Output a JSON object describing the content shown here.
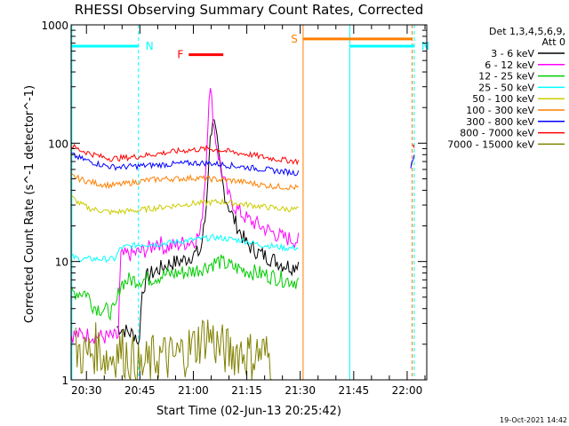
{
  "chart_data": {
    "type": "line",
    "title": "RHESSI Observing Summary Count Rates, Corrected",
    "ylabel": "Corrected Count Rate (s^-1 detector^-1)",
    "xlabel": "Start Time (02-Jun-13 20:25:42)",
    "yscale": "log",
    "ylim": [
      1,
      1000
    ],
    "y_ticks": [
      "1",
      "10",
      "100",
      "1000"
    ],
    "x_ticks": [
      "20:30",
      "20:45",
      "21:00",
      "21:15",
      "21:30",
      "21:45",
      "22:00"
    ],
    "x_tick_minutes": [
      30,
      45,
      60,
      75,
      90,
      105,
      120
    ],
    "xlim_minutes": [
      25.7,
      125.5
    ],
    "x_unit": "minutes after 20:00 UT",
    "legend_placement": "right",
    "legend_header": [
      "Det 1,3,4,5,6,9,",
      "Att 0"
    ],
    "footer": "19-Oct-2021 14:42",
    "grid": false,
    "series": [
      {
        "name": "3 - 6 keV",
        "color": "#000000",
        "x": [
          38.5,
          40,
          42,
          44,
          44.6,
          45.6,
          47,
          50,
          53,
          56,
          58,
          60,
          62,
          63.5,
          64.5,
          65.5,
          66.5,
          67.5,
          69,
          71,
          73,
          75,
          78,
          82,
          85,
          88,
          89.5
        ],
        "y": [
          2.8,
          2.7,
          2.5,
          2.4,
          1.8,
          5.5,
          7.5,
          8.5,
          9.5,
          10,
          10.5,
          11.5,
          12,
          25,
          90,
          170,
          110,
          60,
          35,
          24,
          18,
          14,
          12,
          10.5,
          9.5,
          9,
          10
        ]
      },
      {
        "name": "6 - 12 keV",
        "color": "#ff00ff",
        "x": [
          25.8,
          30,
          35,
          39,
          39.5,
          42,
          45,
          48,
          50,
          52,
          54,
          56,
          58,
          60,
          62,
          63.5,
          64.5,
          65.2,
          66,
          67,
          68.5,
          70,
          72,
          75,
          80,
          85,
          89.5
        ],
        "y": [
          2.4,
          2.4,
          2.3,
          2.3,
          11,
          11.5,
          12,
          13,
          15,
          13,
          13.5,
          14,
          14.5,
          15,
          17,
          60,
          310,
          220,
          120,
          80,
          50,
          35,
          28,
          23,
          19,
          16,
          15
        ]
      },
      {
        "name": "12 - 25 keV",
        "color": "#00cc00",
        "x": [
          25.8,
          30,
          32,
          34,
          36,
          38,
          39.5,
          42,
          45,
          48,
          50,
          53,
          56,
          59,
          61,
          63,
          65,
          67,
          69,
          71,
          74,
          78,
          82,
          86,
          89.5
        ],
        "y": [
          5.5,
          5.5,
          4.2,
          4,
          3.8,
          3.8,
          6.5,
          7,
          7,
          7.2,
          7.5,
          7.8,
          8,
          8.2,
          8.5,
          9,
          9.5,
          10,
          9.5,
          9,
          8.5,
          8,
          7.5,
          7,
          6.8
        ]
      },
      {
        "name": "25 - 50 keV",
        "color": "#00ffff",
        "x": [
          25.8,
          28,
          30,
          34,
          38,
          39.5,
          42,
          46,
          50,
          54,
          58,
          62,
          66,
          70,
          74,
          78,
          82,
          86,
          89.5
        ],
        "y": [
          11,
          10.5,
          10.5,
          10.5,
          10.5,
          13,
          13.5,
          14,
          14,
          14.5,
          15,
          15.5,
          16,
          15.5,
          15,
          14,
          13.5,
          13,
          13
        ]
      },
      {
        "name": "50 - 100 keV",
        "color": "#cccc00",
        "x": [
          25.8,
          28,
          31,
          34,
          37,
          40,
          44,
          48,
          52,
          56,
          60,
          64,
          68,
          72,
          76,
          80,
          84,
          89.5
        ],
        "y": [
          35,
          31,
          28,
          27,
          26,
          26.5,
          27,
          28,
          29,
          30,
          31,
          31.5,
          32,
          31,
          30,
          29,
          28,
          27.5
        ]
      },
      {
        "name": "100 - 300 keV",
        "color": "#ff7f00",
        "x": [
          25.8,
          28,
          31,
          34,
          37,
          40,
          44,
          48,
          52,
          56,
          60,
          64,
          68,
          72,
          76,
          80,
          84,
          89.5
        ],
        "y": [
          53,
          50,
          47,
          45,
          44,
          45,
          47,
          49,
          50,
          50,
          51,
          50,
          49,
          48,
          46,
          44,
          43,
          42
        ]
      },
      {
        "name": "300 - 800 keV",
        "color": "#0000ff",
        "x": [
          25.8,
          28,
          31,
          34,
          37,
          40,
          44,
          48,
          52,
          56,
          60,
          64,
          68,
          72,
          76,
          80,
          84,
          89.5,
          121,
          122
        ],
        "y": [
          80,
          75,
          70,
          66,
          63,
          63,
          64,
          65,
          66,
          67,
          68,
          68,
          66,
          64,
          62,
          60,
          58,
          56,
          65,
          80
        ]
      },
      {
        "name": "800 - 7000 keV",
        "color": "#ff0000",
        "x": [
          25.8,
          28,
          31,
          34,
          37,
          40,
          44,
          48,
          52,
          56,
          60,
          64,
          68,
          72,
          76,
          80,
          84,
          89.5,
          121.5,
          122
        ],
        "y": [
          95,
          88,
          82,
          77,
          74,
          75,
          77,
          80,
          83,
          86,
          88,
          90,
          87,
          83,
          80,
          76,
          73,
          70,
          100,
          90
        ]
      },
      {
        "name": "7000 - 15000 keV",
        "color": "#808000",
        "x": [
          27,
          30,
          33,
          36,
          39,
          42,
          45,
          50,
          54,
          57,
          60,
          62,
          64,
          67,
          70,
          73,
          76,
          79,
          82
        ],
        "y": [
          1.8,
          1.6,
          1.9,
          1.5,
          1.8,
          1.6,
          1.2,
          1.6,
          1.5,
          1.7,
          1.9,
          2.2,
          2.5,
          1.9,
          1.7,
          1.8,
          1.6,
          1.7,
          1.5
        ]
      }
    ],
    "annotations": [
      {
        "label": "N",
        "type": "night",
        "color": "#00ffff",
        "x_start": 25.7,
        "x_end": 44.6,
        "level": 660
      },
      {
        "label": "N",
        "type": "night",
        "color": "#00ffff",
        "x_start": 103.9,
        "x_end": 122,
        "level": 660
      },
      {
        "label": "F",
        "type": "flare",
        "color": "#ff0000",
        "x_start": 58.7,
        "x_end": 68.4,
        "level": 560
      },
      {
        "label": "S",
        "type": "saa",
        "color": "#ff7f00",
        "x_start": 90.8,
        "x_end": 121.5,
        "level": 760
      }
    ],
    "vertical_lines": [
      {
        "x": 25.9,
        "color": "#00ffff",
        "style": "solid"
      },
      {
        "x": 44.6,
        "color": "#00ffff",
        "style": "dashed"
      },
      {
        "x": 90.8,
        "color": "#ff7f00",
        "style": "solid"
      },
      {
        "x": 103.9,
        "color": "#00ffff",
        "style": "solid"
      },
      {
        "x": 121.4,
        "color": "#ff7f00",
        "style": "dashed"
      },
      {
        "x": 122,
        "color": "#00ffff",
        "style": "dashed"
      }
    ]
  }
}
